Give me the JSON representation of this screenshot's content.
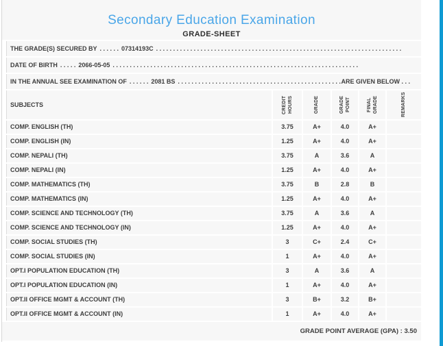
{
  "header": {
    "title": "Secondary Education Examination",
    "subtitle": "GRADE-SHEET"
  },
  "info_lines": [
    {
      "label": "THE GRADE(S) SECURED BY",
      "dots1": ". . . . . .",
      "value": "07314193C",
      "dots2": ". . . . . . . . . . . . . . . . . . . . . . . . . . . . . . . . . . . . . . . . . . . . . . . . . . . . . . . . . . . . . . . . . . . . . . . ."
    },
    {
      "label": "DATE OF BIRTH",
      "dots1": ". . . . .",
      "value": "2066-05-05",
      "dots2": ". . . . . . . . . . . . . . . . . . . . . . . . . . . . . . . . . . . . . . . . . . . . . . . . . . . . . . . . . . . . . . . . . . . . . . . ."
    },
    {
      "label": "IN THE ANNUAL SEE EXAMINATION OF",
      "dots1": ". . . . . .",
      "value": "2081 BS",
      "dots2": ". . . . . . . . . . . . . . . . . . . . . . . . . . . . . . . . . . . . . . . . . . . . . . . . . . . . . . . . . . . . . . . . . . . . . . . .",
      "suffix": "ARE GIVEN BELOW . . ."
    }
  ],
  "table": {
    "headers": {
      "subjects": "SUBJECTS",
      "credit_hours": "CREDIT HOURS",
      "grade": "GRADE",
      "grade_point": "GRADE POINT",
      "final_grade": "FINAL GRADE",
      "remarks": "REMARKS"
    },
    "rows": [
      {
        "subject": "COMP. ENGLISH (TH)",
        "credit_hours": "3.75",
        "grade": "A+",
        "grade_point": "4.0",
        "final_grade": "A+",
        "remarks": ""
      },
      {
        "subject": "COMP. ENGLISH (IN)",
        "credit_hours": "1.25",
        "grade": "A+",
        "grade_point": "4.0",
        "final_grade": "A+",
        "remarks": ""
      },
      {
        "subject": "COMP. NEPALI (TH)",
        "credit_hours": "3.75",
        "grade": "A",
        "grade_point": "3.6",
        "final_grade": "A",
        "remarks": ""
      },
      {
        "subject": "COMP. NEPALI (IN)",
        "credit_hours": "1.25",
        "grade": "A+",
        "grade_point": "4.0",
        "final_grade": "A+",
        "remarks": ""
      },
      {
        "subject": "COMP. MATHEMATICS (TH)",
        "credit_hours": "3.75",
        "grade": "B",
        "grade_point": "2.8",
        "final_grade": "B",
        "remarks": ""
      },
      {
        "subject": "COMP. MATHEMATICS (IN)",
        "credit_hours": "1.25",
        "grade": "A+",
        "grade_point": "4.0",
        "final_grade": "A+",
        "remarks": ""
      },
      {
        "subject": "COMP. SCIENCE AND TECHNOLOGY (TH)",
        "credit_hours": "3.75",
        "grade": "A",
        "grade_point": "3.6",
        "final_grade": "A",
        "remarks": ""
      },
      {
        "subject": "COMP. SCIENCE AND TECHNOLOGY (IN)",
        "credit_hours": "1.25",
        "grade": "A+",
        "grade_point": "4.0",
        "final_grade": "A+",
        "remarks": ""
      },
      {
        "subject": "COMP. SOCIAL STUDIES (TH)",
        "credit_hours": "3",
        "grade": "C+",
        "grade_point": "2.4",
        "final_grade": "C+",
        "remarks": ""
      },
      {
        "subject": "COMP. SOCIAL STUDIES (IN)",
        "credit_hours": "1",
        "grade": "A+",
        "grade_point": "4.0",
        "final_grade": "A+",
        "remarks": ""
      },
      {
        "subject": "OPT.I POPULATION EDUCATION (TH)",
        "credit_hours": "3",
        "grade": "A",
        "grade_point": "3.6",
        "final_grade": "A",
        "remarks": ""
      },
      {
        "subject": "OPT.I POPULATION EDUCATION (IN)",
        "credit_hours": "1",
        "grade": "A+",
        "grade_point": "4.0",
        "final_grade": "A+",
        "remarks": ""
      },
      {
        "subject": "OPT.II OFFICE MGMT & ACCOUNT (TH)",
        "credit_hours": "3",
        "grade": "B+",
        "grade_point": "3.2",
        "final_grade": "B+",
        "remarks": ""
      },
      {
        "subject": "OPT.II OFFICE MGMT & ACCOUNT (IN)",
        "credit_hours": "1",
        "grade": "A+",
        "grade_point": "4.0",
        "final_grade": "A+",
        "remarks": ""
      }
    ]
  },
  "footer": {
    "gpa_label": "GRADE POINT AVERAGE (GPA) : ",
    "gpa_value": "3.50"
  },
  "colors": {
    "title_accent": "#4aa6e8",
    "side_bar": "#0f9ad3",
    "band_bg": "#f7f7f7",
    "text": "#3d3d3d"
  }
}
